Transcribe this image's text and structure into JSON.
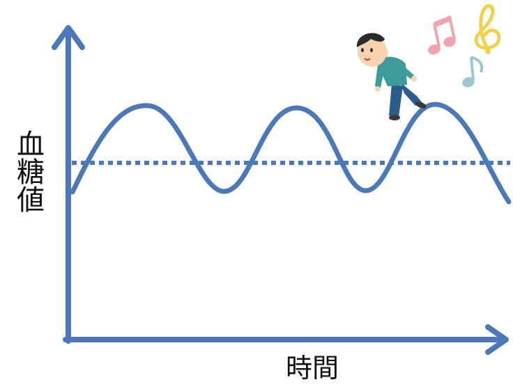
{
  "labels": {
    "y_axis": "血糖値",
    "x_axis": "時間"
  },
  "colors": {
    "axis": "#4a78b8",
    "curve": "#4a78b8",
    "baseline": "#4a78b8",
    "note_pink": "#f3a3ad",
    "note_yellow": "#f2d14a",
    "note_blue": "#9bc7d4",
    "shirt": "#3f9a9c",
    "pants": "#2a5c8c",
    "hair": "#2b2b2b",
    "skin": "#f7d3b0"
  },
  "diagram": {
    "type": "wave",
    "description_labels_only": true,
    "peaks": 3,
    "troughs": 3,
    "icons": [
      "person-walking-icon",
      "music-note-pink-icon",
      "treble-clef-icon",
      "music-note-blue-icon"
    ]
  }
}
